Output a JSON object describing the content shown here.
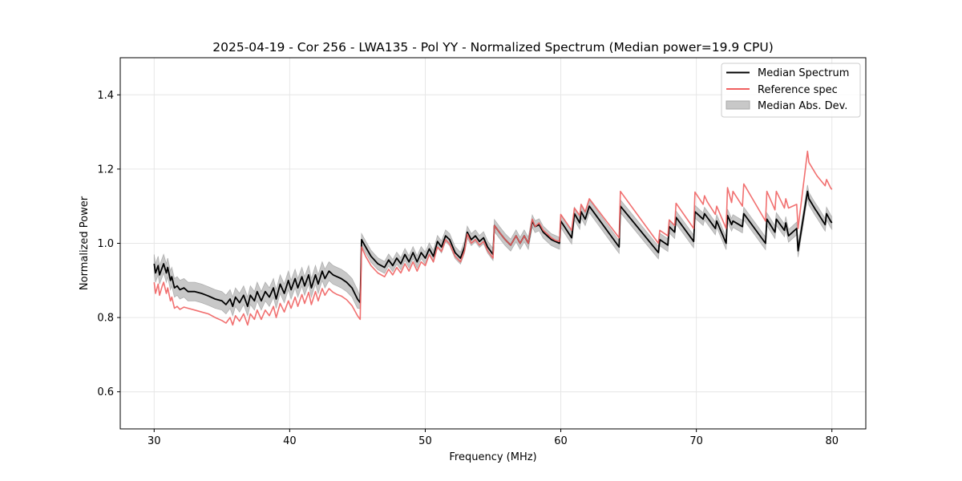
{
  "chart_data": {
    "type": "line",
    "title": "2025-04-19 - Cor 256 - LWA135 - Pol YY - Normalized Spectrum (Median power=19.9 CPU)",
    "xlabel": "Frequency (MHz)",
    "ylabel": "Normalized Power",
    "xlim": [
      27.5,
      82.5
    ],
    "ylim": [
      0.5,
      1.5
    ],
    "xticks": [
      30,
      40,
      50,
      60,
      70,
      80
    ],
    "yticks": [
      0.6,
      0.8,
      1.0,
      1.2,
      1.4
    ],
    "xtick_labels": [
      "30",
      "40",
      "50",
      "60",
      "70",
      "80"
    ],
    "ytick_labels": [
      "0.6",
      "0.8",
      "1.0",
      "1.2",
      "1.4"
    ],
    "grid": true,
    "legend_position": "top-right",
    "legend": [
      {
        "label": "Median Spectrum",
        "kind": "line",
        "color": "#000000"
      },
      {
        "label": "Reference spec",
        "kind": "line",
        "color": "#f06060"
      },
      {
        "label": "Median Abs. Dev.",
        "kind": "band",
        "color": "#bdbdbd"
      }
    ],
    "series": [
      {
        "name": "Median Spectrum",
        "color": "#000000",
        "x": [
          30.0,
          30.1,
          30.3,
          30.4,
          30.6,
          30.7,
          30.9,
          31.0,
          31.2,
          31.3,
          31.5,
          31.7,
          31.9,
          32.2,
          32.5,
          33.0,
          33.5,
          34.0,
          34.5,
          35.0,
          35.3,
          35.6,
          35.8,
          36.0,
          36.3,
          36.6,
          36.9,
          37.1,
          37.4,
          37.6,
          37.9,
          38.2,
          38.5,
          38.8,
          39.0,
          39.3,
          39.6,
          39.9,
          40.1,
          40.4,
          40.6,
          40.9,
          41.1,
          41.4,
          41.6,
          41.9,
          42.1,
          42.4,
          42.6,
          42.9,
          43.2,
          43.5,
          43.8,
          44.2,
          44.6,
          45.0,
          45.2,
          45.3,
          45.6,
          46.0,
          46.5,
          47.0,
          47.3,
          47.6,
          47.9,
          48.2,
          48.5,
          48.8,
          49.1,
          49.4,
          49.7,
          50.0,
          50.3,
          50.6,
          50.9,
          51.2,
          51.5,
          51.8,
          52.2,
          52.6,
          52.9,
          53.1,
          53.4,
          53.7,
          54.0,
          54.3,
          54.6,
          55.0,
          55.1,
          55.5,
          55.9,
          56.3,
          56.7,
          57.0,
          57.3,
          57.6,
          57.9,
          58.1,
          58.4,
          58.7,
          59.0,
          59.3,
          59.6,
          59.9,
          60.0,
          60.8,
          61.0,
          61.4,
          61.5,
          61.8,
          62.1,
          64.3,
          64.4,
          67.2,
          67.3,
          67.9,
          68.0,
          68.4,
          68.5,
          69.8,
          69.9,
          70.5,
          70.6,
          70.8,
          71.4,
          71.5,
          72.2,
          72.3,
          72.6,
          72.7,
          73.4,
          73.5,
          75.1,
          75.2,
          75.8,
          75.9,
          76.5,
          76.6,
          76.8,
          77.4,
          77.5,
          78.2,
          78.3,
          78.8,
          78.9,
          79.5,
          79.6,
          79.9,
          80.0
        ],
        "y": [
          0.945,
          0.92,
          0.94,
          0.915,
          0.935,
          0.945,
          0.92,
          0.935,
          0.9,
          0.91,
          0.88,
          0.885,
          0.875,
          0.88,
          0.87,
          0.87,
          0.865,
          0.858,
          0.85,
          0.845,
          0.835,
          0.85,
          0.83,
          0.855,
          0.84,
          0.86,
          0.83,
          0.86,
          0.845,
          0.87,
          0.845,
          0.87,
          0.855,
          0.88,
          0.85,
          0.89,
          0.865,
          0.9,
          0.875,
          0.905,
          0.88,
          0.91,
          0.885,
          0.915,
          0.88,
          0.915,
          0.89,
          0.925,
          0.905,
          0.925,
          0.915,
          0.91,
          0.905,
          0.895,
          0.88,
          0.85,
          0.84,
          1.01,
          0.99,
          0.965,
          0.945,
          0.935,
          0.955,
          0.94,
          0.96,
          0.945,
          0.97,
          0.95,
          0.975,
          0.95,
          0.975,
          0.96,
          0.985,
          0.965,
          1.005,
          0.99,
          1.02,
          1.01,
          0.975,
          0.96,
          0.99,
          1.03,
          1.01,
          1.02,
          1.005,
          1.015,
          0.99,
          0.97,
          1.048,
          1.028,
          1.01,
          0.995,
          1.02,
          1.0,
          1.02,
          1.0,
          1.06,
          1.045,
          1.05,
          1.03,
          1.02,
          1.01,
          1.005,
          1.0,
          1.06,
          1.015,
          1.08,
          1.055,
          1.085,
          1.065,
          1.1,
          0.99,
          1.1,
          0.975,
          1.01,
          0.995,
          1.045,
          1.03,
          1.07,
          1.005,
          1.085,
          1.065,
          1.08,
          1.07,
          1.04,
          1.06,
          1.0,
          1.075,
          1.05,
          1.06,
          1.045,
          1.08,
          1.0,
          1.065,
          1.03,
          1.065,
          1.035,
          1.055,
          1.02,
          1.04,
          0.98,
          1.14,
          1.12,
          1.09,
          1.085,
          1.05,
          1.08,
          1.06,
          1.055
        ]
      },
      {
        "name": "Reference spec",
        "color": "#f06060",
        "x": [
          30.0,
          30.1,
          30.3,
          30.4,
          30.6,
          30.7,
          30.9,
          31.0,
          31.2,
          31.3,
          31.5,
          31.7,
          31.9,
          32.2,
          32.5,
          33.0,
          33.5,
          34.0,
          34.5,
          35.0,
          35.3,
          35.6,
          35.8,
          36.0,
          36.3,
          36.6,
          36.9,
          37.1,
          37.4,
          37.6,
          37.9,
          38.2,
          38.5,
          38.8,
          39.0,
          39.3,
          39.6,
          39.9,
          40.1,
          40.4,
          40.6,
          40.9,
          41.1,
          41.4,
          41.6,
          41.9,
          42.1,
          42.4,
          42.6,
          42.9,
          43.2,
          43.5,
          43.8,
          44.2,
          44.6,
          45.0,
          45.2,
          45.3,
          45.6,
          46.0,
          46.5,
          47.0,
          47.3,
          47.6,
          47.9,
          48.2,
          48.5,
          48.8,
          49.1,
          49.4,
          49.7,
          50.0,
          50.3,
          50.6,
          50.9,
          51.2,
          51.5,
          51.8,
          52.2,
          52.6,
          52.9,
          53.1,
          53.4,
          53.7,
          54.0,
          54.3,
          54.6,
          55.0,
          55.1,
          55.5,
          55.9,
          56.3,
          56.7,
          57.0,
          57.3,
          57.6,
          57.9,
          58.1,
          58.4,
          58.7,
          59.0,
          59.3,
          59.6,
          59.9,
          60.0,
          60.8,
          61.0,
          61.4,
          61.5,
          61.8,
          62.1,
          64.3,
          64.4,
          67.2,
          67.3,
          67.9,
          68.0,
          68.4,
          68.5,
          69.8,
          69.9,
          70.5,
          70.6,
          70.8,
          71.4,
          71.5,
          72.2,
          72.3,
          72.6,
          72.7,
          73.4,
          73.5,
          75.1,
          75.2,
          75.8,
          75.9,
          76.5,
          76.6,
          76.8,
          77.4,
          77.5,
          78.2,
          78.3,
          78.8,
          78.9,
          79.5,
          79.6,
          79.9,
          80.0
        ],
        "y": [
          0.895,
          0.865,
          0.89,
          0.86,
          0.885,
          0.895,
          0.865,
          0.88,
          0.845,
          0.855,
          0.825,
          0.83,
          0.822,
          0.828,
          0.825,
          0.82,
          0.815,
          0.81,
          0.8,
          0.792,
          0.785,
          0.8,
          0.78,
          0.805,
          0.79,
          0.81,
          0.78,
          0.81,
          0.795,
          0.82,
          0.795,
          0.82,
          0.805,
          0.83,
          0.8,
          0.838,
          0.815,
          0.845,
          0.825,
          0.855,
          0.83,
          0.862,
          0.838,
          0.868,
          0.835,
          0.87,
          0.845,
          0.878,
          0.86,
          0.878,
          0.868,
          0.862,
          0.858,
          0.848,
          0.832,
          0.805,
          0.795,
          0.99,
          0.965,
          0.94,
          0.92,
          0.91,
          0.93,
          0.915,
          0.935,
          0.92,
          0.945,
          0.925,
          0.95,
          0.925,
          0.95,
          0.94,
          0.97,
          0.95,
          0.99,
          0.978,
          1.01,
          0.998,
          0.965,
          0.95,
          0.98,
          1.025,
          1.0,
          1.01,
          0.995,
          1.005,
          0.98,
          0.96,
          1.048,
          1.028,
          1.01,
          0.995,
          1.02,
          1.0,
          1.02,
          1.0,
          1.065,
          1.045,
          1.055,
          1.035,
          1.025,
          1.015,
          1.008,
          1.005,
          1.078,
          1.035,
          1.095,
          1.075,
          1.105,
          1.085,
          1.12,
          1.015,
          1.14,
          1.0,
          1.035,
          1.02,
          1.063,
          1.048,
          1.108,
          1.04,
          1.138,
          1.105,
          1.128,
          1.112,
          1.078,
          1.1,
          1.04,
          1.15,
          1.11,
          1.14,
          1.1,
          1.16,
          1.06,
          1.14,
          1.09,
          1.14,
          1.095,
          1.12,
          1.095,
          1.105,
          1.04,
          1.248,
          1.218,
          1.188,
          1.182,
          1.155,
          1.172,
          1.15,
          1.145
        ]
      },
      {
        "name": "Median Abs. Dev.",
        "kind": "band",
        "color": "#bdbdbd",
        "half_width_range": [
          0.015,
          0.025
        ]
      }
    ]
  }
}
